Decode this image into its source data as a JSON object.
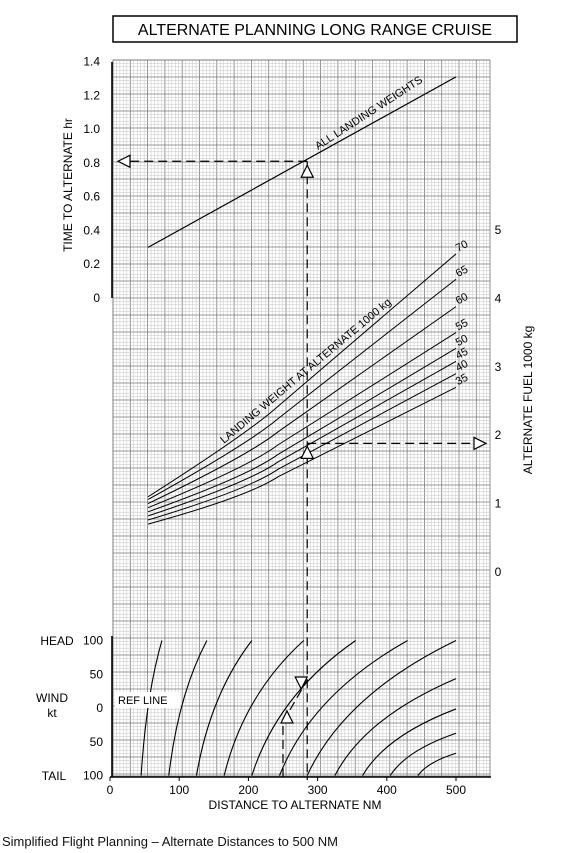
{
  "title": "ALTERNATE PLANNING  LONG RANGE CRUISE",
  "caption": "Simplified Flight Planning – Alternate Distances to 500 NM",
  "labels": {
    "time_axis": "TIME TO ALTERNATE  hr",
    "fuel_axis": "ALTERNATE FUEL  1000 kg",
    "distance_axis": "DISTANCE TO ALTERNATE  NM",
    "all_landing_weights": "ALL LANDING WEIGHTS",
    "landing_weight": "LANDING WEIGHT AT ALTERNATE 1000 kg",
    "head": "HEAD",
    "tail": "TAIL",
    "wind": "WIND",
    "wind_unit": "kt",
    "ref_line": "REF LINE"
  },
  "chart_data": [
    {
      "type": "line",
      "panel": "time",
      "ylabel": "TIME TO ALTERNATE  hr",
      "ylim": [
        0,
        1.4
      ],
      "yticks": [
        "0",
        "0.2",
        "0.4",
        "0.6",
        "0.8",
        "1.0",
        "1.2",
        "1.4"
      ],
      "series": [
        {
          "name": "ALL LANDING WEIGHTS",
          "x": [
            55,
            500
          ],
          "y": [
            0.3,
            1.31
          ]
        }
      ],
      "example": {
        "distance": 285,
        "time": 0.81
      }
    },
    {
      "type": "line",
      "panel": "fuel",
      "ylabel": "ALTERNATE FUEL  1000 kg",
      "ylim": [
        0,
        5
      ],
      "yticks": [
        "0",
        "1",
        "2",
        "3",
        "4",
        "5"
      ],
      "x": [
        55,
        200,
        500
      ],
      "series": [
        {
          "name": "35",
          "y": [
            0.7,
            1.25,
            2.7
          ]
        },
        {
          "name": "40",
          "y": [
            0.76,
            1.35,
            2.9
          ]
        },
        {
          "name": "45",
          "y": [
            0.82,
            1.45,
            3.08
          ]
        },
        {
          "name": "50",
          "y": [
            0.88,
            1.55,
            3.27
          ]
        },
        {
          "name": "55",
          "y": [
            0.94,
            1.68,
            3.5
          ]
        },
        {
          "name": "60",
          "y": [
            1.0,
            1.85,
            3.88
          ]
        },
        {
          "name": "65",
          "y": [
            1.06,
            2.02,
            4.28
          ]
        },
        {
          "name": "70",
          "y": [
            1.1,
            2.18,
            4.65
          ]
        }
      ],
      "example": {
        "distance": 285,
        "fuel": 1.88
      }
    },
    {
      "type": "line",
      "panel": "wind",
      "xlabel": "DISTANCE TO ALTERNATE  NM",
      "xlim": [
        0,
        550
      ],
      "xticks": [
        "0",
        "100",
        "200",
        "300",
        "400",
        "500"
      ],
      "wind_ticks": [
        "100",
        "50",
        "0",
        "50",
        "100"
      ],
      "series": [
        {
          "x_tail": 45,
          "x_head": 75
        },
        {
          "x_tail": 85,
          "x_head": 140
        },
        {
          "x_tail": 125,
          "x_head": 205
        },
        {
          "x_tail": 165,
          "x_head": 280
        },
        {
          "x_tail": 205,
          "x_head": 355
        },
        {
          "x_tail": 245,
          "x_head": 430
        },
        {
          "x_tail": 285,
          "x_head": 500
        },
        {
          "x_tail": 325,
          "x_head": 500
        },
        {
          "x_tail": 365,
          "x_head": 500
        },
        {
          "x_tail": 405,
          "x_head": 500
        },
        {
          "x_tail": 445,
          "x_head": 500
        }
      ],
      "example": {
        "wind": 0,
        "distance_in": 250,
        "distance_out": 285
      }
    }
  ]
}
